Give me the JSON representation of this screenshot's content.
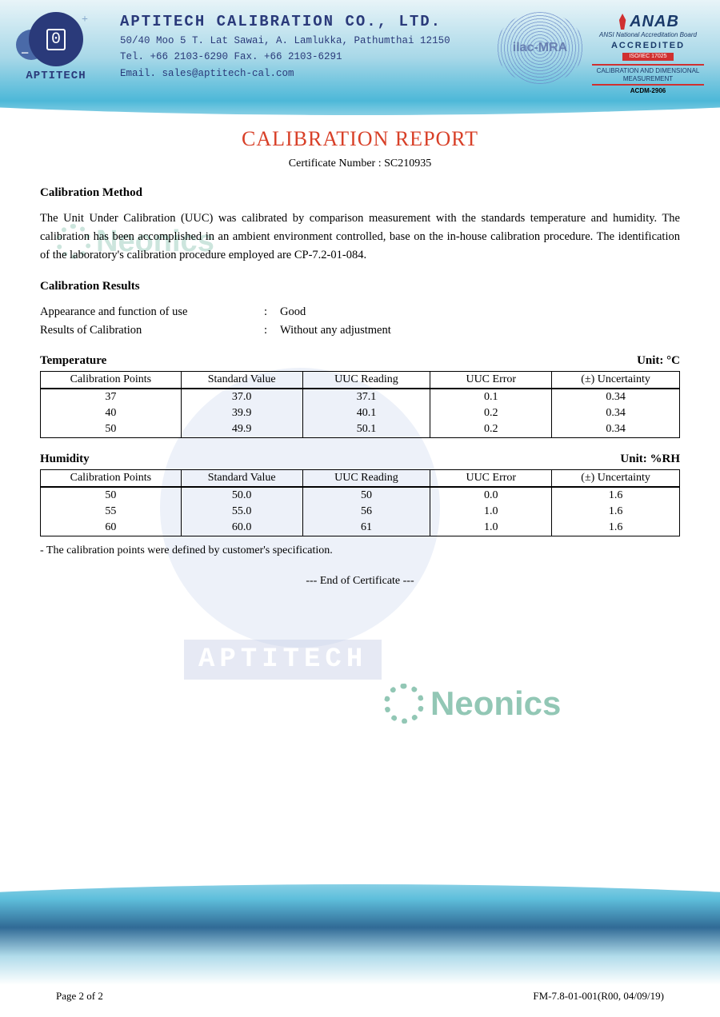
{
  "header": {
    "logo_text": "APTITECH",
    "company_name": "APTITECH CALIBRATION CO., LTD.",
    "address": "50/40 Moo 5 T. Lat Sawai, A. Lamlukka, Pathumthai 12150",
    "tel_fax": "Tel. +66 2103-6290 Fax. +66 2103-6291",
    "email": "Email. sales@aptitech-cal.com",
    "ilac_text": "ilac-MRA",
    "anab": {
      "name": "ANAB",
      "sub": "ANSI National Accreditation Board",
      "accredited": "ACCREDITED",
      "iso": "ISO/IEC 17025",
      "scope": "CALIBRATION AND DIMENSIONAL MEASUREMENT",
      "code": "ACDM-2906"
    }
  },
  "title": "CALIBRATION REPORT",
  "certificate_label": "Certificate Number : ",
  "certificate_number": "SC210935",
  "method": {
    "heading": "Calibration Method",
    "text": "The Unit Under Calibration (UUC) was calibrated by comparison measurement with the standards temperature and humidity. The calibration has been accomplished in an ambient environment controlled, base on the in-house calibration procedure. The identification of the laboratory's calibration procedure employed are CP-7.2-01-084."
  },
  "results": {
    "heading": "Calibration Results",
    "appearance_label": "Appearance and function of use",
    "appearance_value": "Good",
    "results_label": "Results of Calibration",
    "results_value": "Without any adjustment"
  },
  "tables": {
    "columns": [
      "Calibration Points",
      "Standard Value",
      "UUC Reading",
      "UUC Error",
      "(±) Uncertainty"
    ],
    "temperature": {
      "title": "Temperature",
      "unit": "Unit: °C",
      "rows": [
        [
          "37",
          "37.0",
          "37.1",
          "0.1",
          "0.34"
        ],
        [
          "40",
          "39.9",
          "40.1",
          "0.2",
          "0.34"
        ],
        [
          "50",
          "49.9",
          "50.1",
          "0.2",
          "0.34"
        ]
      ]
    },
    "humidity": {
      "title": "Humidity",
      "unit": "Unit: %RH",
      "rows": [
        [
          "50",
          "50.0",
          "50",
          "0.0",
          "1.6"
        ],
        [
          "55",
          "55.0",
          "56",
          "1.0",
          "1.6"
        ],
        [
          "60",
          "60.0",
          "61",
          "1.0",
          "1.6"
        ]
      ]
    }
  },
  "note": "- The calibration points were defined by customer's specification.",
  "end": "--- End of Certificate ---",
  "watermarks": {
    "neonics": "Neonics",
    "aptitech": "APTITECH"
  },
  "footer": {
    "page": "Page 2 of 2",
    "form": "FM-7.8-01-001(R00, 04/09/19)"
  },
  "style": {
    "title_color": "#d84028",
    "header_text_color": "#2a3a7a",
    "wave_colors": [
      "#e8f4f8",
      "#a8d8e8",
      "#4db8d8",
      "#1a5a8a"
    ],
    "table_border": "#000000",
    "font_body": "Georgia, serif",
    "font_mono": "Courier New, monospace",
    "col_widths_pct": [
      22,
      19,
      20,
      19,
      20
    ]
  }
}
